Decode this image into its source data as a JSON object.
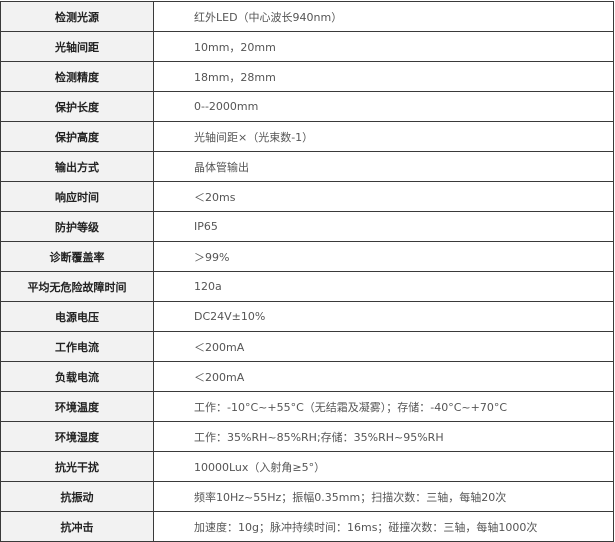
{
  "rows": [
    {
      "label": "检测光源",
      "value": "红外LED（中心波长940nm）"
    },
    {
      "label": "光轴间距",
      "value": "10mm，20mm"
    },
    {
      "label": "检测精度",
      "value": "18mm，28mm"
    },
    {
      "label": "保护长度",
      "value": "0--2000mm"
    },
    {
      "label": "保护高度",
      "value": "光轴间距×（光束数-1）"
    },
    {
      "label": "输出方式",
      "value": "晶体管输出"
    },
    {
      "label": "响应时间",
      "value": "＜20ms"
    },
    {
      "label": "防护等级",
      "value": "IP65"
    },
    {
      "label": "诊断覆盖率",
      "value": "＞99%"
    },
    {
      "label": "平均无危险故障时间",
      "value": "120a"
    },
    {
      "label": "电源电压",
      "value": "DC24V±10%"
    },
    {
      "label": "工作电流",
      "value": "＜200mA"
    },
    {
      "label": "负载电流",
      "value": "＜200mA"
    },
    {
      "label": "环境温度",
      "value": "工作：-10°C~+55°C（无结霜及凝雾）；存储：-40°C~+70°C"
    },
    {
      "label": "环境湿度",
      "value": "工作：35%RH~85%RH;存储：35%RH~95%RH"
    },
    {
      "label": "抗光干扰",
      "value": "10000Lux（入射角≥5°）"
    },
    {
      "label": "抗振动",
      "value": "频率10Hz~55Hz；振幅0.35mm；扫描次数：三轴，每轴20次"
    },
    {
      "label": "抗冲击",
      "value": "加速度：10g；脉冲持续时间：16ms；碰撞次数：三轴，每轴1000次"
    }
  ]
}
